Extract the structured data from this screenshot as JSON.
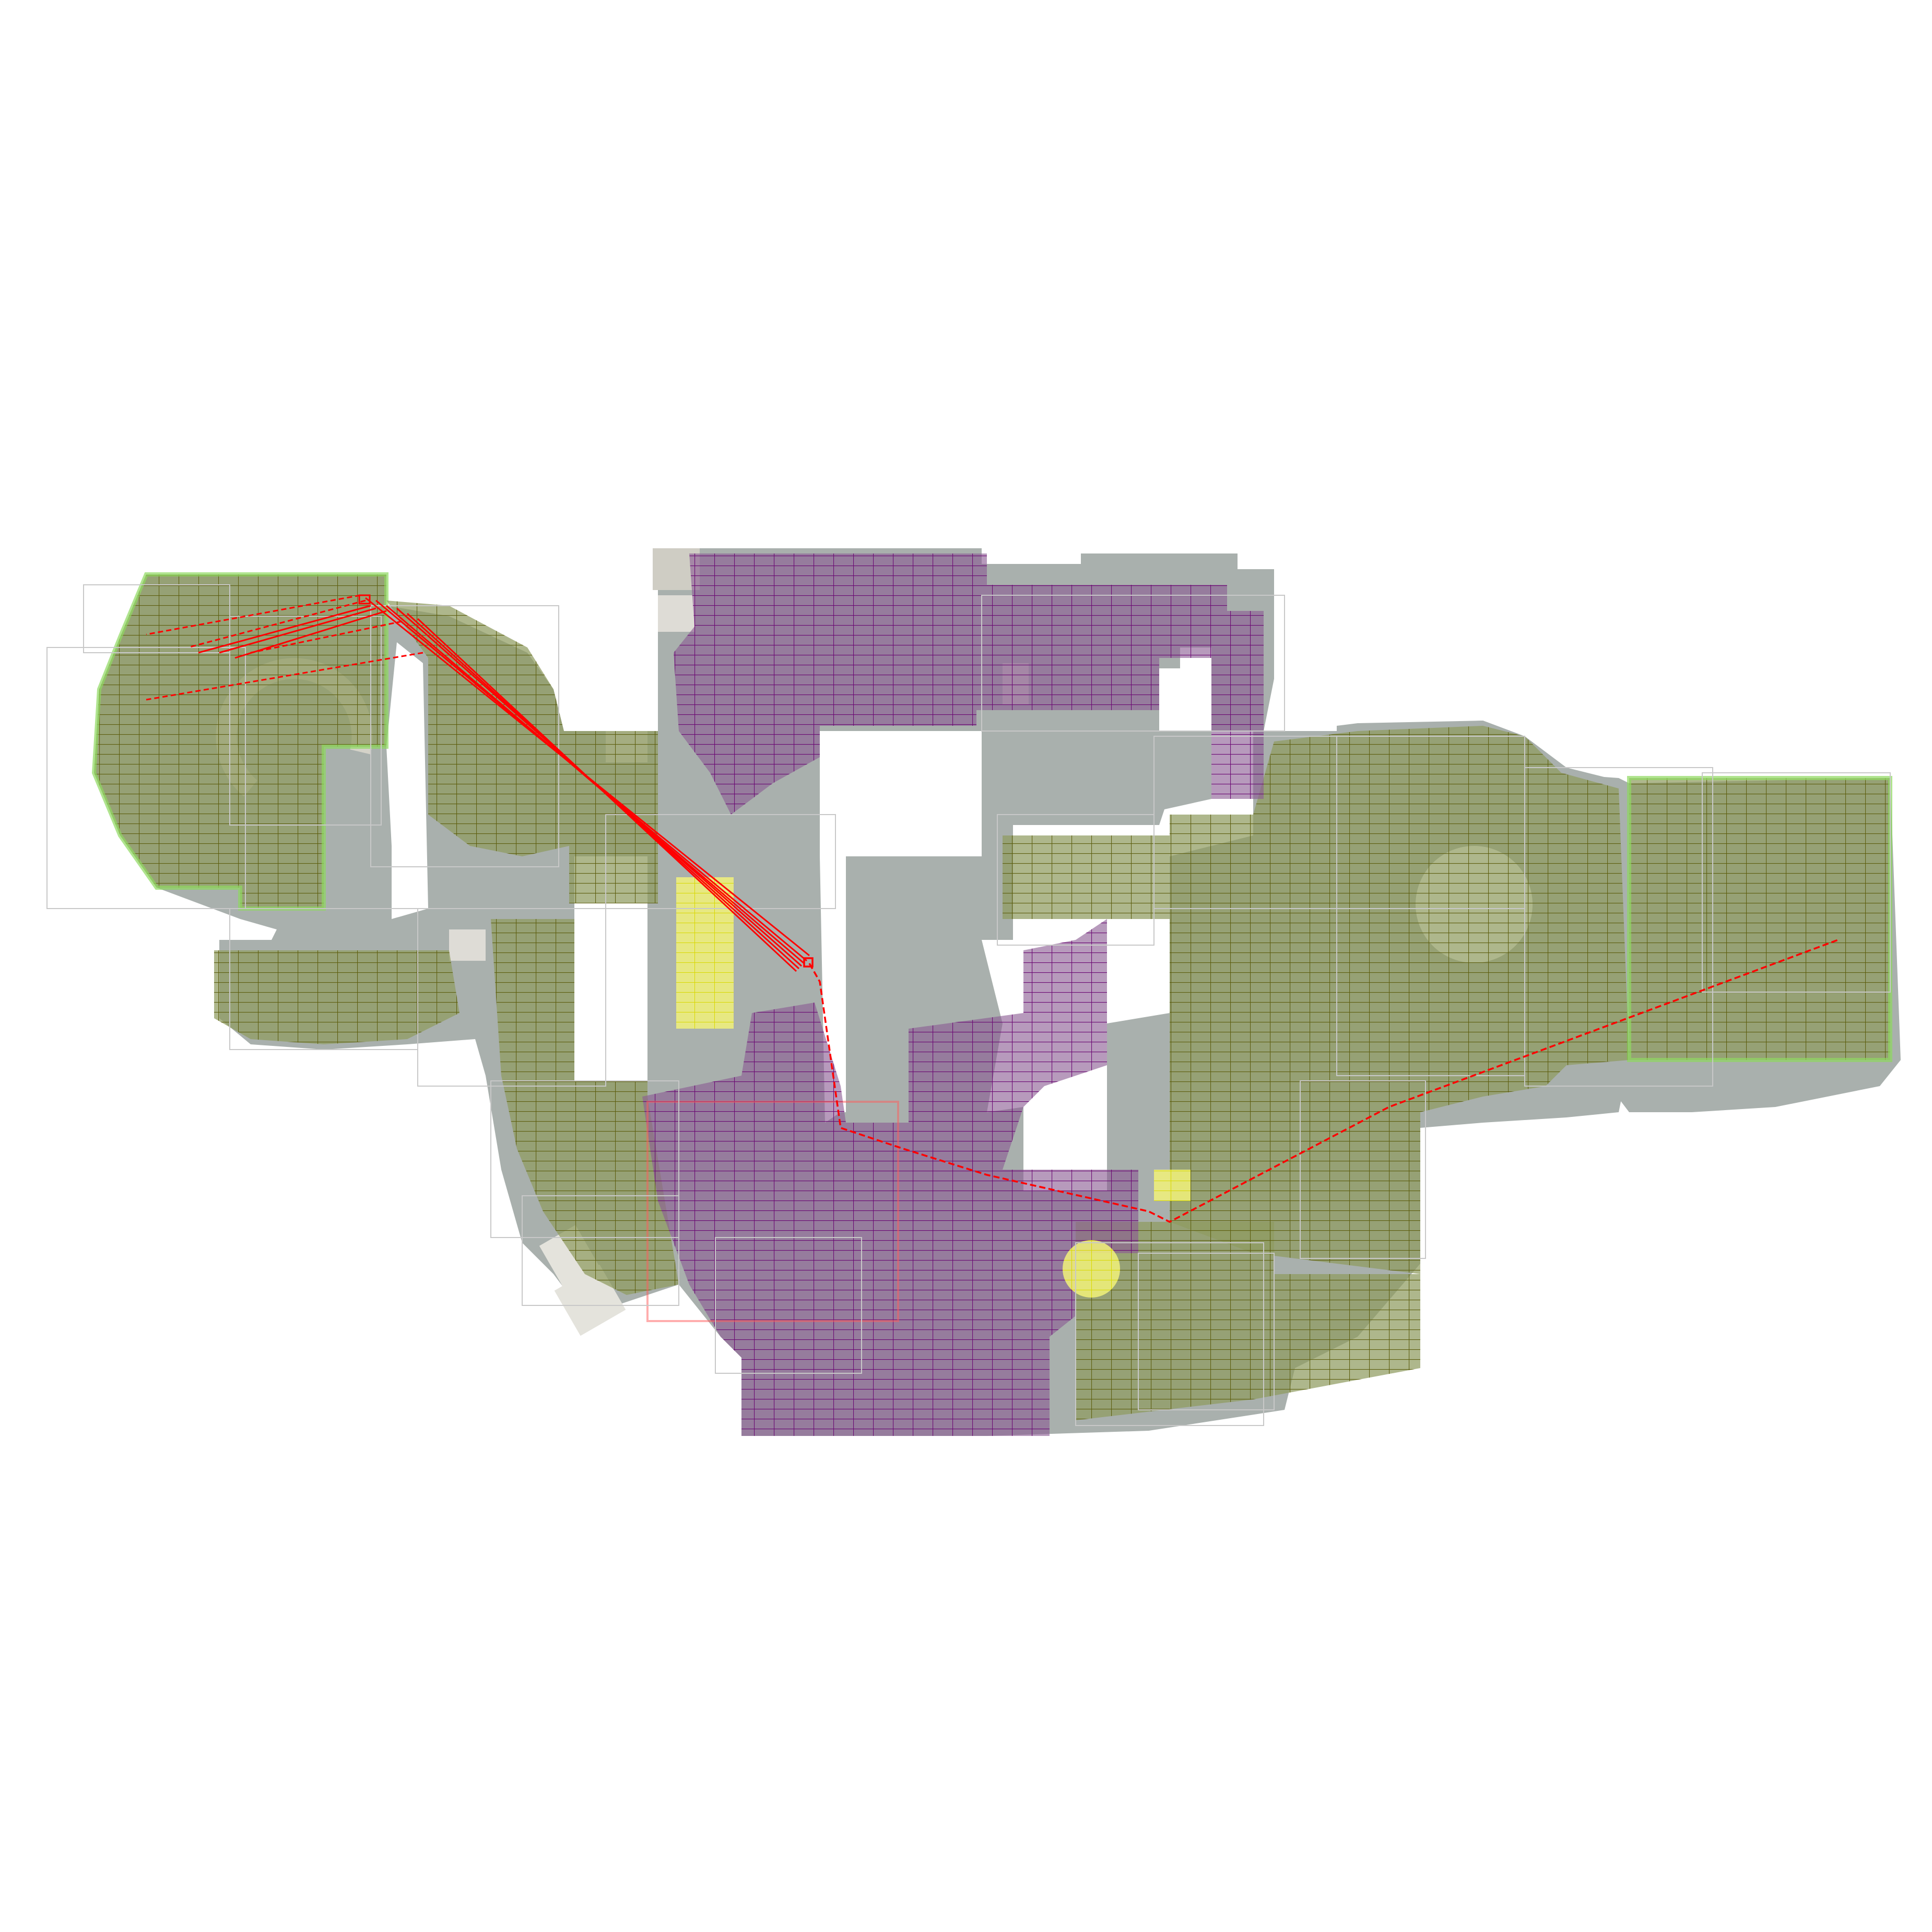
{
  "map": {
    "kind": "navmesh-overlay",
    "colors": {
      "background": "#ffffff",
      "floor": "#a9b0ad",
      "floor_dark": "#8f9896",
      "prop": "#cfcdc4",
      "prop_light": "#e4e3dc",
      "region_a": "#8f9b60",
      "region_a_line": "#5e5f10",
      "region_b": "#8a5c93",
      "region_b_line": "#6b0a73",
      "highlight": "#f2f27a",
      "highlight_line": "#d8d800",
      "spawn_outline": "#8fd860",
      "path": "#ff0000",
      "bbox_outline": "#c8c8c8"
    },
    "regions": {
      "green_zone": "walkable-area-green",
      "purple_zone": "walkable-area-purple",
      "yellow_zone": "highlighted-cells"
    },
    "paths": {
      "main_route": "red-dashed-path",
      "sight_lines": "red-fan-lines"
    }
  }
}
